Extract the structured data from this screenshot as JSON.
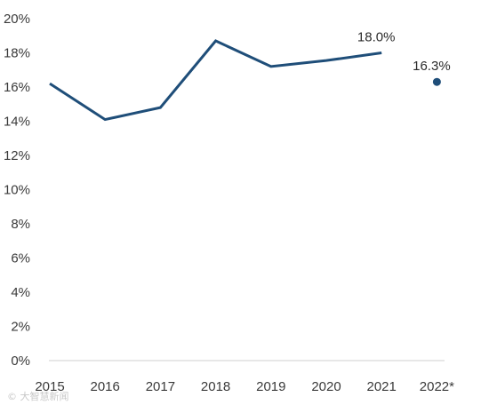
{
  "chart_data": {
    "type": "line",
    "title": "",
    "xlabel": "",
    "ylabel": "",
    "categories": [
      "2015",
      "2016",
      "2017",
      "2018",
      "2019",
      "2020",
      "2021",
      "2022*"
    ],
    "series": [
      {
        "values": [
          16.2,
          14.1,
          14.8,
          18.7,
          17.2,
          17.55,
          18.0,
          16.3
        ],
        "line_until_index": 6,
        "point_indices": [
          7
        ],
        "color": "#1f4e79"
      }
    ],
    "data_labels": [
      {
        "index": 6,
        "text": "18.0%"
      },
      {
        "index": 7,
        "text": "16.3%"
      }
    ],
    "y_ticks": [
      "0%",
      "2%",
      "4%",
      "6%",
      "8%",
      "10%",
      "12%",
      "14%",
      "16%",
      "18%",
      "20%"
    ],
    "ylim": [
      0,
      20
    ],
    "grid": false,
    "legend": "none"
  },
  "watermark": "© 大智慧新闻"
}
